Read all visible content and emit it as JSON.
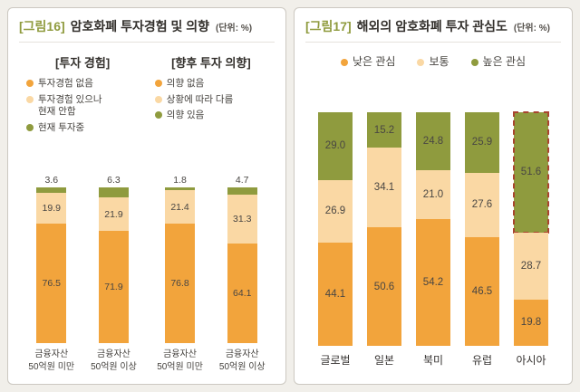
{
  "colors": {
    "orange": "#F2A43C",
    "peach": "#FAD8A4",
    "olive": "#8F9B3E",
    "highlight": "#A9442F"
  },
  "fig16": {
    "tag": "[그림16]",
    "title": "암호화폐 투자경험 및 의향",
    "unit": "(단위: %)"
  },
  "fig17": {
    "tag": "[그림17]",
    "title": "해외의 암호화폐 투자 관심도",
    "unit": "(단위: %)"
  },
  "chart_data": [
    {
      "type": "bar",
      "subtype": "stacked-vertical-percent",
      "title": "[투자 경험]",
      "categories": [
        "금융자산\n50억원 미만",
        "금융자산\n50억원 이상"
      ],
      "series": [
        {
          "name": "투자경험 없음",
          "color_key": "orange",
          "values": [
            76.5,
            71.9
          ]
        },
        {
          "name": "투자경험 있으나\n현재 안함",
          "color_key": "peach",
          "values": [
            19.9,
            21.9
          ]
        },
        {
          "name": "현재 투자중",
          "color_key": "olive",
          "values": [
            3.6,
            6.3
          ]
        }
      ],
      "ylim": [
        0,
        100
      ],
      "unit": "%",
      "grid": false,
      "legend_position": "top-left-vertical"
    },
    {
      "type": "bar",
      "subtype": "stacked-vertical-percent",
      "title": "[향후 투자 의향]",
      "categories": [
        "금융자산\n50억원 미만",
        "금융자산\n50억원 이상"
      ],
      "series": [
        {
          "name": "의향 없음",
          "color_key": "orange",
          "values": [
            76.8,
            64.1
          ]
        },
        {
          "name": "상황에 따라 다름",
          "color_key": "peach",
          "values": [
            21.4,
            31.3
          ]
        },
        {
          "name": "의향 있음",
          "color_key": "olive",
          "values": [
            1.8,
            4.7
          ]
        }
      ],
      "ylim": [
        0,
        100
      ],
      "unit": "%",
      "grid": false,
      "legend_position": "top-left-vertical"
    },
    {
      "type": "bar",
      "subtype": "stacked-vertical-percent",
      "title": "해외의 암호화폐 투자 관심도",
      "categories": [
        "글로벌",
        "일본",
        "북미",
        "유럽",
        "아시아"
      ],
      "series": [
        {
          "name": "낮은 관심",
          "color_key": "orange",
          "values": [
            44.1,
            50.6,
            54.2,
            46.5,
            19.8
          ]
        },
        {
          "name": "보통",
          "color_key": "peach",
          "values": [
            26.9,
            34.1,
            21.0,
            27.6,
            28.7
          ]
        },
        {
          "name": "높은 관심",
          "color_key": "olive",
          "values": [
            29.0,
            15.2,
            24.8,
            25.9,
            51.6
          ]
        }
      ],
      "highlight_category": "아시아",
      "highlight_series": "높은 관심",
      "ylim": [
        0,
        100
      ],
      "unit": "%",
      "grid": false,
      "legend_position": "top-horizontal"
    }
  ]
}
